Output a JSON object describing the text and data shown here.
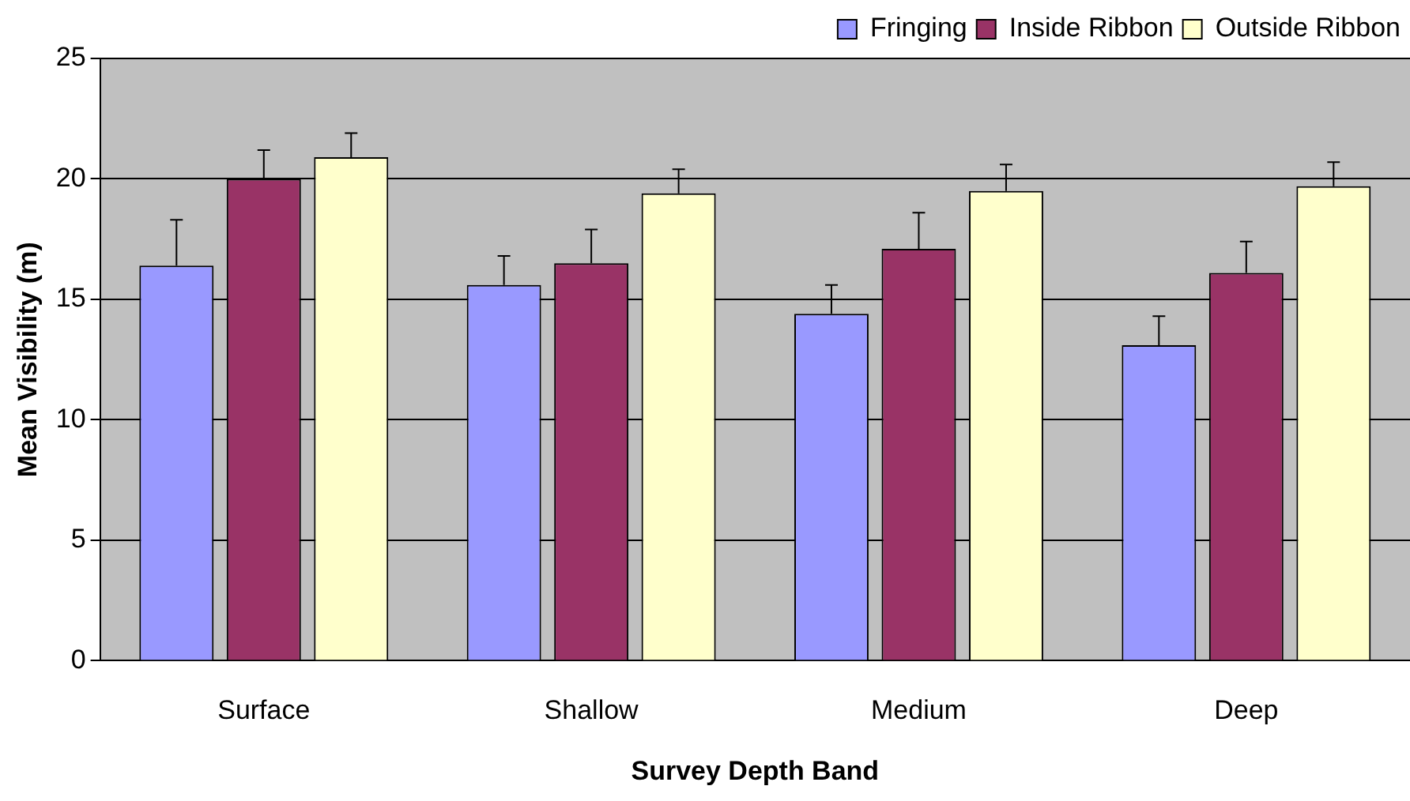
{
  "chart_data": {
    "type": "bar",
    "xlabel": "Survey Depth Band",
    "ylabel": "Mean Visibility (m)",
    "categories": [
      "Surface",
      "Shallow",
      "Medium",
      "Deep"
    ],
    "series": [
      {
        "name": "Fringing",
        "color": "#9999ff",
        "values": [
          16.4,
          15.6,
          14.4,
          13.1
        ],
        "errors": [
          [
            16.4,
            18.3
          ],
          [
            15.6,
            16.8
          ],
          [
            14.4,
            15.6
          ],
          [
            13.1,
            14.3
          ]
        ]
      },
      {
        "name": "Inside Ribbon",
        "color": "#993366",
        "values": [
          20.0,
          16.5,
          17.1,
          16.1
        ],
        "errors": [
          [
            20.0,
            21.2
          ],
          [
            16.5,
            17.9
          ],
          [
            17.1,
            18.6
          ],
          [
            16.1,
            17.4
          ]
        ]
      },
      {
        "name": "Outside Ribbon",
        "color": "#ffffcc",
        "values": [
          20.9,
          19.4,
          19.5,
          19.7
        ],
        "errors": [
          [
            20.9,
            21.9
          ],
          [
            19.4,
            20.4
          ],
          [
            19.5,
            20.6
          ],
          [
            19.7,
            20.7
          ]
        ]
      }
    ],
    "ylim": [
      0,
      25
    ],
    "yticks": [
      0,
      5,
      10,
      15,
      20,
      25
    ],
    "grid": "y",
    "legend": "top right"
  }
}
